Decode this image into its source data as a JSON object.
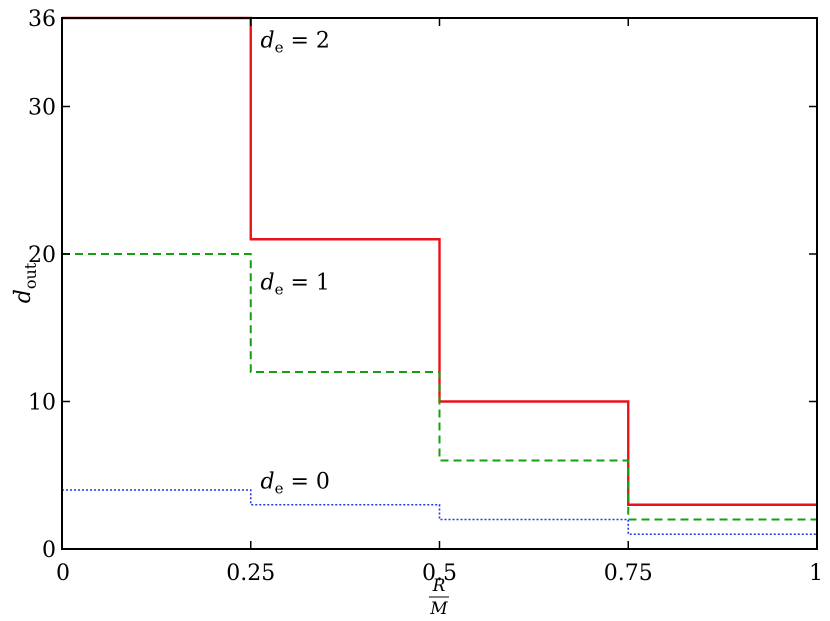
{
  "chart_data": {
    "type": "line",
    "step": "post",
    "title": "",
    "xlabel": {
      "numerator": "R",
      "denominator": "M"
    },
    "ylabel": {
      "main": "d",
      "sub": "out"
    },
    "xlim": [
      0,
      1
    ],
    "ylim": [
      0,
      36
    ],
    "xticks": [
      {
        "value": 0,
        "label": "0"
      },
      {
        "value": 0.25,
        "label": "0.25"
      },
      {
        "value": 0.5,
        "label": "0.5"
      },
      {
        "value": 0.75,
        "label": "0.75"
      },
      {
        "value": 1,
        "label": "1"
      }
    ],
    "yticks": [
      {
        "value": 0,
        "label": "0"
      },
      {
        "value": 10,
        "label": "10"
      },
      {
        "value": 20,
        "label": "20"
      },
      {
        "value": 30,
        "label": "30"
      },
      {
        "value": 36,
        "label": "36"
      }
    ],
    "grid": false,
    "legend": "none",
    "series": [
      {
        "key": "de2",
        "color": "#e8121a",
        "style": "solid",
        "x": [
          0,
          0.25,
          0.5,
          0.75,
          1
        ],
        "y": [
          36,
          21,
          10,
          3,
          3
        ]
      },
      {
        "key": "de1",
        "color": "#14a010",
        "style": "dashed",
        "x": [
          0,
          0.25,
          0.5,
          0.75,
          1
        ],
        "y": [
          20,
          12,
          6,
          2,
          2
        ]
      },
      {
        "key": "de0",
        "color": "#1a3ce8",
        "style": "dotted",
        "x": [
          0,
          0.25,
          0.5,
          0.75,
          1
        ],
        "y": [
          4,
          3,
          2,
          1,
          1
        ]
      }
    ],
    "annotations": [
      {
        "series": "de2",
        "var": "d",
        "sub": "e",
        "eq": " = 2",
        "x": 0.255,
        "y": 34
      },
      {
        "series": "de1",
        "var": "d",
        "sub": "e",
        "eq": " = 1",
        "x": 0.255,
        "y": 17.6
      },
      {
        "series": "de0",
        "var": "d",
        "sub": "e",
        "eq": " = 0",
        "x": 0.255,
        "y": 4.1
      }
    ]
  }
}
